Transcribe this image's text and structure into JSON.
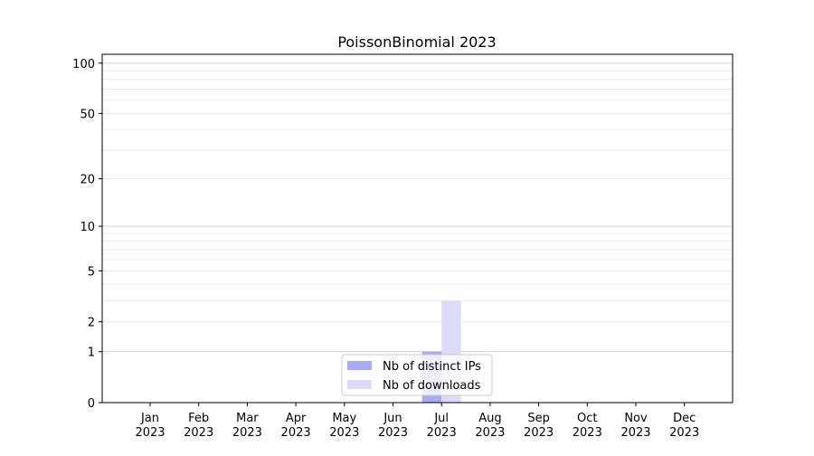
{
  "chart_data": {
    "type": "bar",
    "title": "PoissonBinomial 2023",
    "xlabel": "",
    "ylabel": "",
    "y_scale": "log(y+1)",
    "ylim": [
      0,
      113
    ],
    "y_ticks": [
      0,
      1,
      2,
      5,
      10,
      20,
      50,
      100
    ],
    "grid": true,
    "legend_position": "lower center",
    "categories": [
      "Jan\n2023",
      "Feb\n2023",
      "Mar\n2023",
      "Apr\n2023",
      "May\n2023",
      "Jun\n2023",
      "Jul\n2023",
      "Aug\n2023",
      "Sep\n2023",
      "Oct\n2023",
      "Nov\n2023",
      "Dec\n2023"
    ],
    "series": [
      {
        "name": "Nb of distinct IPs",
        "color": "#aaaaf5",
        "values": [
          0,
          0,
          0,
          0,
          0,
          0,
          1,
          0,
          0,
          0,
          0,
          0
        ]
      },
      {
        "name": "Nb of downloads",
        "color": "#dcdcfa",
        "values": [
          0,
          0,
          0,
          0,
          0,
          0,
          3,
          0,
          0,
          0,
          0,
          0
        ]
      }
    ]
  }
}
